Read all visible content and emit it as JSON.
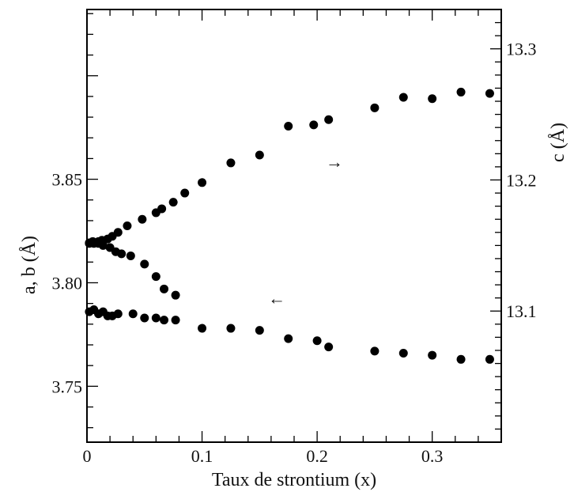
{
  "chart_data": {
    "type": "scatter",
    "title": "",
    "xlabel": "Taux de strontium (x)",
    "ylabel_left": "a, b (Å)",
    "ylabel_right": "c (Å)",
    "xlim": [
      0,
      0.36
    ],
    "ylim_left": [
      3.723,
      3.932
    ],
    "ylim_right": [
      13.0,
      13.33
    ],
    "x_ticks": [
      0,
      0.1,
      0.2,
      0.3
    ],
    "x_tick_labels": [
      "0",
      "0.1",
      "0.2",
      "0.3"
    ],
    "y_left_ticks": [
      3.75,
      3.8,
      3.85
    ],
    "y_left_tick_labels": [
      "3.75",
      "3.80",
      "3.85"
    ],
    "y_right_ticks": [
      13.1,
      13.2,
      13.3
    ],
    "y_right_tick_labels": [
      "13.1",
      "13.2",
      "13.3"
    ],
    "grid": false,
    "color": "#000000",
    "series": [
      {
        "axis": "right",
        "x": [
          0.002,
          0.005,
          0.01,
          0.013,
          0.018,
          0.022,
          0.027,
          0.035,
          0.048,
          0.06,
          0.065,
          0.075,
          0.085,
          0.1,
          0.125,
          0.15,
          0.175,
          0.197,
          0.21,
          0.25,
          0.275,
          0.3,
          0.325,
          0.35
        ],
        "values": [
          13.152,
          13.153,
          13.153,
          13.154,
          13.155,
          13.157,
          13.16,
          13.165,
          13.17,
          13.175,
          13.178,
          13.183,
          13.19,
          13.198,
          13.213,
          13.219,
          13.241,
          13.242,
          13.246,
          13.255,
          13.263,
          13.262,
          13.267,
          13.266
        ]
      },
      {
        "axis": "left",
        "x": [
          0.002,
          0.006,
          0.01,
          0.014,
          0.02,
          0.025,
          0.03,
          0.038,
          0.05,
          0.06,
          0.067,
          0.077
        ],
        "values": [
          3.819,
          3.819,
          3.819,
          3.818,
          3.817,
          3.815,
          3.814,
          3.813,
          3.809,
          3.803,
          3.797,
          3.794
        ]
      },
      {
        "axis": "left",
        "x": [
          0.002,
          0.006,
          0.01,
          0.014,
          0.018,
          0.022,
          0.027,
          0.04,
          0.05,
          0.06,
          0.067,
          0.077,
          0.1,
          0.125,
          0.15,
          0.175,
          0.2,
          0.21,
          0.25,
          0.275,
          0.3,
          0.325,
          0.35
        ],
        "values": [
          3.786,
          3.787,
          3.785,
          3.786,
          3.784,
          3.784,
          3.785,
          3.785,
          3.783,
          3.783,
          3.782,
          3.782,
          3.778,
          3.778,
          3.777,
          3.773,
          3.772,
          3.769,
          3.767,
          3.766,
          3.765,
          3.763,
          3.763
        ]
      }
    ],
    "annotations": [
      {
        "text": "→",
        "x": 0.215,
        "axis": "right",
        "y": 13.213
      },
      {
        "text": "←",
        "x": 0.165,
        "axis": "left",
        "y": 3.792
      }
    ]
  }
}
